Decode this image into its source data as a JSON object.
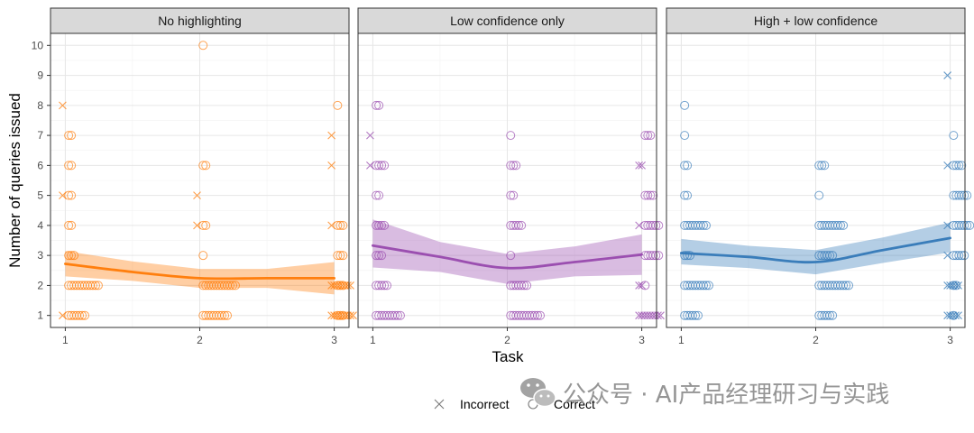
{
  "chart_data": {
    "type": "scatter",
    "facets": [
      {
        "title": "No highlighting",
        "color": "#FF7F0E",
        "smooth": [
          [
            1,
            2.72
          ],
          [
            1.5,
            2.45
          ],
          [
            2,
            2.24
          ],
          [
            2.5,
            2.24
          ],
          [
            3,
            2.24
          ]
        ],
        "band": [
          [
            1,
            2.3,
            3.15
          ],
          [
            1.5,
            2.15,
            2.8
          ],
          [
            2,
            1.92,
            2.55
          ],
          [
            2.5,
            1.92,
            2.55
          ],
          [
            3,
            1.7,
            2.78
          ]
        ],
        "points": [
          {
            "task": 1,
            "queries": 8,
            "result": "Incorrect",
            "count": 1
          },
          {
            "task": 1,
            "queries": 7,
            "result": "Correct",
            "count": 2
          },
          {
            "task": 1,
            "queries": 6,
            "result": "Correct",
            "count": 2
          },
          {
            "task": 1,
            "queries": 5,
            "result": "Incorrect",
            "count": 1
          },
          {
            "task": 1,
            "queries": 5,
            "result": "Correct",
            "count": 2
          },
          {
            "task": 1,
            "queries": 4,
            "result": "Correct",
            "count": 2
          },
          {
            "task": 1,
            "queries": 3,
            "result": "Correct",
            "count": 3
          },
          {
            "task": 1,
            "queries": 2,
            "result": "Correct",
            "count": 12
          },
          {
            "task": 1,
            "queries": 1,
            "result": "Incorrect",
            "count": 1
          },
          {
            "task": 1,
            "queries": 1,
            "result": "Correct",
            "count": 7
          },
          {
            "task": 2,
            "queries": 10,
            "result": "Correct",
            "count": 1
          },
          {
            "task": 2,
            "queries": 6,
            "result": "Correct",
            "count": 2
          },
          {
            "task": 2,
            "queries": 5,
            "result": "Incorrect",
            "count": 1
          },
          {
            "task": 2,
            "queries": 4,
            "result": "Incorrect",
            "count": 1
          },
          {
            "task": 2,
            "queries": 4,
            "result": "Correct",
            "count": 2
          },
          {
            "task": 2,
            "queries": 3,
            "result": "Correct",
            "count": 1
          },
          {
            "task": 2,
            "queries": 2,
            "result": "Correct",
            "count": 13
          },
          {
            "task": 2,
            "queries": 1,
            "result": "Correct",
            "count": 10
          },
          {
            "task": 3,
            "queries": 8,
            "result": "Correct",
            "count": 1
          },
          {
            "task": 3,
            "queries": 7,
            "result": "Incorrect",
            "count": 1
          },
          {
            "task": 3,
            "queries": 6,
            "result": "Incorrect",
            "count": 1
          },
          {
            "task": 3,
            "queries": 4,
            "result": "Incorrect",
            "count": 1
          },
          {
            "task": 3,
            "queries": 4,
            "result": "Correct",
            "count": 3
          },
          {
            "task": 3,
            "queries": 3,
            "result": "Correct",
            "count": 3
          },
          {
            "task": 3,
            "queries": 2,
            "result": "Incorrect",
            "count": 8
          },
          {
            "task": 3,
            "queries": 2,
            "result": "Correct",
            "count": 3
          },
          {
            "task": 3,
            "queries": 1,
            "result": "Incorrect",
            "count": 9
          },
          {
            "task": 3,
            "queries": 1,
            "result": "Correct",
            "count": 3
          }
        ]
      },
      {
        "title": "Low confidence only",
        "color": "#9B4FB0",
        "smooth": [
          [
            1,
            3.33
          ],
          [
            1.5,
            2.95
          ],
          [
            2,
            2.58
          ],
          [
            2.5,
            2.78
          ],
          [
            3,
            3.03
          ]
        ],
        "band": [
          [
            1,
            2.6,
            4.2
          ],
          [
            1.5,
            2.45,
            3.45
          ],
          [
            2,
            2.05,
            3.05
          ],
          [
            2.5,
            2.3,
            3.3
          ],
          [
            3,
            2.35,
            3.7
          ]
        ],
        "points": [
          {
            "task": 1,
            "queries": 8,
            "result": "Correct",
            "count": 2
          },
          {
            "task": 1,
            "queries": 7,
            "result": "Incorrect",
            "count": 1
          },
          {
            "task": 1,
            "queries": 6,
            "result": "Incorrect",
            "count": 1
          },
          {
            "task": 1,
            "queries": 6,
            "result": "Correct",
            "count": 4
          },
          {
            "task": 1,
            "queries": 5,
            "result": "Correct",
            "count": 2
          },
          {
            "task": 1,
            "queries": 4,
            "result": "Correct",
            "count": 4
          },
          {
            "task": 1,
            "queries": 3,
            "result": "Correct",
            "count": 3
          },
          {
            "task": 1,
            "queries": 2,
            "result": "Correct",
            "count": 5
          },
          {
            "task": 1,
            "queries": 1,
            "result": "Correct",
            "count": 10
          },
          {
            "task": 2,
            "queries": 7,
            "result": "Correct",
            "count": 1
          },
          {
            "task": 2,
            "queries": 6,
            "result": "Correct",
            "count": 3
          },
          {
            "task": 2,
            "queries": 5,
            "result": "Correct",
            "count": 2
          },
          {
            "task": 2,
            "queries": 4,
            "result": "Correct",
            "count": 5
          },
          {
            "task": 2,
            "queries": 3,
            "result": "Correct",
            "count": 1
          },
          {
            "task": 2,
            "queries": 2,
            "result": "Correct",
            "count": 7
          },
          {
            "task": 2,
            "queries": 1,
            "result": "Correct",
            "count": 12
          },
          {
            "task": 3,
            "queries": 7,
            "result": "Correct",
            "count": 3
          },
          {
            "task": 3,
            "queries": 6,
            "result": "Incorrect",
            "count": 2
          },
          {
            "task": 3,
            "queries": 5,
            "result": "Correct",
            "count": 4
          },
          {
            "task": 3,
            "queries": 4,
            "result": "Incorrect",
            "count": 1
          },
          {
            "task": 3,
            "queries": 4,
            "result": "Correct",
            "count": 6
          },
          {
            "task": 3,
            "queries": 3,
            "result": "Correct",
            "count": 6
          },
          {
            "task": 3,
            "queries": 2,
            "result": "Incorrect",
            "count": 2
          },
          {
            "task": 3,
            "queries": 2,
            "result": "Correct",
            "count": 1
          },
          {
            "task": 3,
            "queries": 1,
            "result": "Incorrect",
            "count": 9
          }
        ]
      },
      {
        "title": "High + low confidence",
        "color": "#3A7DBA",
        "smooth": [
          [
            1,
            3.08
          ],
          [
            1.5,
            2.95
          ],
          [
            2,
            2.78
          ],
          [
            2.5,
            3.18
          ],
          [
            3,
            3.58
          ]
        ],
        "band": [
          [
            1,
            2.7,
            3.55
          ],
          [
            1.5,
            2.58,
            3.32
          ],
          [
            2,
            2.37,
            3.18
          ],
          [
            2.5,
            2.75,
            3.6
          ],
          [
            3,
            3.1,
            4.1
          ]
        ],
        "points": [
          {
            "task": 1,
            "queries": 8,
            "result": "Correct",
            "count": 1
          },
          {
            "task": 1,
            "queries": 7,
            "result": "Correct",
            "count": 1
          },
          {
            "task": 1,
            "queries": 6,
            "result": "Correct",
            "count": 2
          },
          {
            "task": 1,
            "queries": 5,
            "result": "Correct",
            "count": 2
          },
          {
            "task": 1,
            "queries": 4,
            "result": "Correct",
            "count": 9
          },
          {
            "task": 1,
            "queries": 3,
            "result": "Correct",
            "count": 3
          },
          {
            "task": 1,
            "queries": 2,
            "result": "Correct",
            "count": 10
          },
          {
            "task": 1,
            "queries": 1,
            "result": "Correct",
            "count": 6
          },
          {
            "task": 2,
            "queries": 6,
            "result": "Correct",
            "count": 3
          },
          {
            "task": 2,
            "queries": 5,
            "result": "Correct",
            "count": 1
          },
          {
            "task": 2,
            "queries": 4,
            "result": "Correct",
            "count": 10
          },
          {
            "task": 2,
            "queries": 3,
            "result": "Correct",
            "count": 6
          },
          {
            "task": 2,
            "queries": 2,
            "result": "Correct",
            "count": 12
          },
          {
            "task": 2,
            "queries": 1,
            "result": "Correct",
            "count": 6
          },
          {
            "task": 3,
            "queries": 9,
            "result": "Incorrect",
            "count": 1
          },
          {
            "task": 3,
            "queries": 7,
            "result": "Correct",
            "count": 1
          },
          {
            "task": 3,
            "queries": 6,
            "result": "Incorrect",
            "count": 1
          },
          {
            "task": 3,
            "queries": 6,
            "result": "Correct",
            "count": 4
          },
          {
            "task": 3,
            "queries": 5,
            "result": "Correct",
            "count": 6
          },
          {
            "task": 3,
            "queries": 4,
            "result": "Incorrect",
            "count": 1
          },
          {
            "task": 3,
            "queries": 4,
            "result": "Correct",
            "count": 7
          },
          {
            "task": 3,
            "queries": 3,
            "result": "Incorrect",
            "count": 1
          },
          {
            "task": 3,
            "queries": 3,
            "result": "Correct",
            "count": 5
          },
          {
            "task": 3,
            "queries": 2,
            "result": "Incorrect",
            "count": 5
          },
          {
            "task": 3,
            "queries": 2,
            "result": "Correct",
            "count": 2
          },
          {
            "task": 3,
            "queries": 1,
            "result": "Incorrect",
            "count": 5
          },
          {
            "task": 3,
            "queries": 1,
            "result": "Correct",
            "count": 1
          }
        ]
      }
    ],
    "xlabel": "Task",
    "ylabel": "Number of queries issued",
    "xticks": [
      "1",
      "2",
      "3"
    ],
    "xlim": [
      0.89,
      3.11
    ],
    "yticks": [
      1,
      2,
      3,
      4,
      5,
      6,
      7,
      8,
      9,
      10
    ],
    "ylim": [
      0.6,
      10.4
    ],
    "grid": true,
    "legend": {
      "placement": "bottom",
      "items": [
        {
          "label": "Incorrect",
          "shape": "cross"
        },
        {
          "label": "Correct",
          "shape": "circle"
        }
      ]
    }
  },
  "watermark": {
    "text": "公众号 · AI产品经理研习与实践",
    "icon": "wechat-icon"
  }
}
